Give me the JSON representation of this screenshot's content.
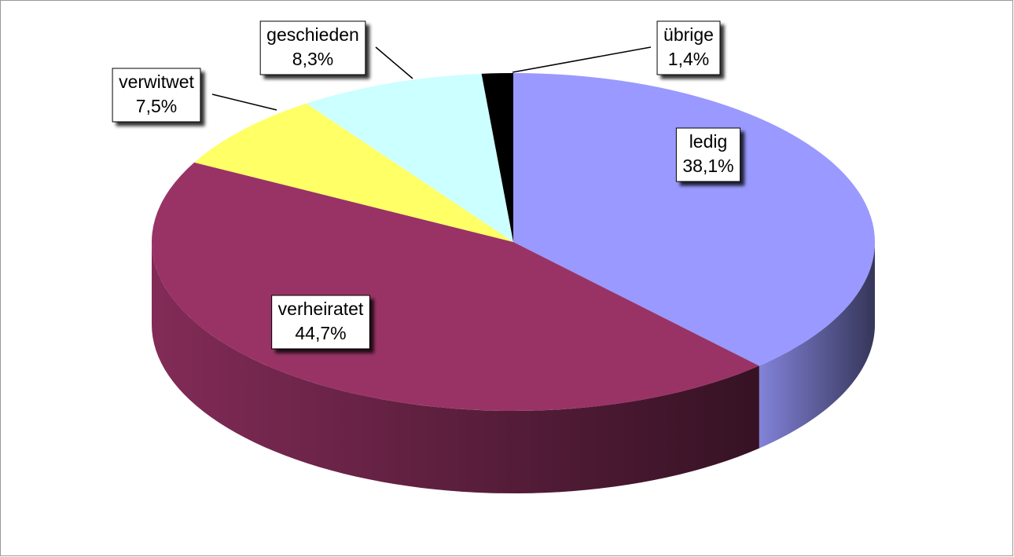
{
  "chart_data": {
    "type": "pie",
    "categories": [
      "ledig",
      "verheiratet",
      "verwitwet",
      "geschieden",
      "übrige"
    ],
    "values": [
      38.1,
      44.7,
      7.5,
      8.3,
      1.4
    ],
    "value_labels": [
      "38,1%",
      "44,7%",
      "7,5%",
      "8,3%",
      "1,4%"
    ],
    "colors": [
      "#9999ff",
      "#993366",
      "#ffff66",
      "#ccffff",
      "#000000"
    ]
  }
}
